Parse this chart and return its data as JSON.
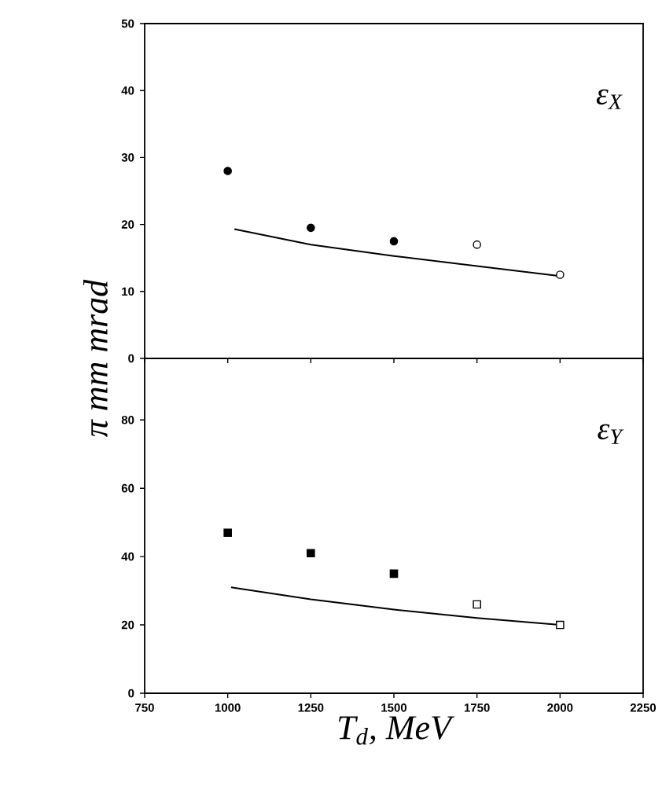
{
  "chart_data": [
    {
      "type": "scatter",
      "ylabel": "π mm mrad",
      "annotations": [
        "ε$_{X}$"
      ],
      "xlim": [
        750,
        2250
      ],
      "xticks": [
        750,
        1000,
        1250,
        1500,
        1750,
        2000,
        2250
      ],
      "ylim": [
        0,
        50
      ],
      "yticks": [
        0,
        10,
        20,
        30,
        40,
        50
      ],
      "tick_labels": "y",
      "series": [
        {
          "marker": "circle",
          "color": "#000000",
          "x": [
            1000,
            1250,
            1500
          ],
          "values": [
            28,
            19.5,
            17.5
          ]
        },
        {
          "marker": "circle",
          "color": "#ffffff",
          "x": [
            1750,
            2000
          ],
          "values": [
            17,
            12.5
          ]
        },
        {
          "type": "line",
          "marker": "none",
          "color": "#000000",
          "x": [
            1020,
            1250,
            1500,
            1750,
            2000
          ],
          "values": [
            19.3,
            17,
            15.3,
            13.8,
            12.3
          ]
        }
      ]
    },
    {
      "type": "scatter",
      "xlabel": "T$_{d}$, MeV",
      "annotations": [
        "ε$_{Y}$"
      ],
      "xlim": [
        750,
        2250
      ],
      "xticks": [
        750,
        1000,
        1250,
        1500,
        1750,
        2000,
        2250
      ],
      "ylim": [
        0,
        98
      ],
      "yticks": [
        0,
        20,
        40,
        60,
        80
      ],
      "series": [
        {
          "marker": "square",
          "color": "#000000",
          "x": [
            1000,
            1250,
            1500
          ],
          "values": [
            47,
            41,
            35
          ]
        },
        {
          "marker": "square",
          "color": "#ffffff",
          "x": [
            1750,
            2000
          ],
          "values": [
            26,
            20
          ]
        },
        {
          "type": "line",
          "marker": "none",
          "color": "#000000",
          "x": [
            1010,
            1250,
            1500,
            1750,
            2000
          ],
          "values": [
            31,
            27.5,
            24.5,
            22,
            20
          ]
        }
      ]
    }
  ]
}
